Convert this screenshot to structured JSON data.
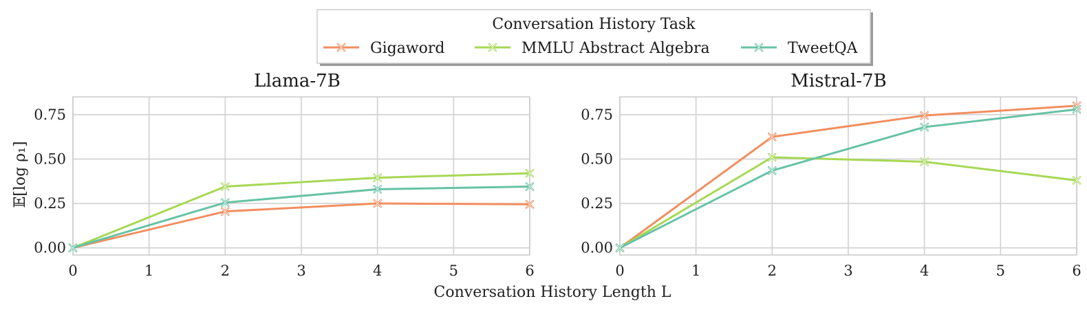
{
  "legend": {
    "title": "Conversation History Task",
    "entries": [
      {
        "name": "Gigaword",
        "color": "#f28e5f"
      },
      {
        "name": "MMLU Abstract Algebra",
        "color": "#a6d854"
      },
      {
        "name": "TweetQA",
        "color": "#66c2a5"
      }
    ]
  },
  "xlabel_shared": "Conversation History Length L",
  "chart_data": [
    {
      "type": "line",
      "title": "Llama-7B",
      "ylabel": "𝔼[log ρ₁]",
      "x": [
        0,
        2,
        4,
        6
      ],
      "xlim": [
        0,
        6
      ],
      "ylim": [
        -0.04,
        0.85
      ],
      "xticks": [
        0,
        1,
        2,
        3,
        4,
        5,
        6
      ],
      "yticks": [
        0.0,
        0.25,
        0.5,
        0.75
      ],
      "ytick_labels": [
        "0.00",
        "0.25",
        "0.50",
        "0.75"
      ],
      "grid": true,
      "marker": "x",
      "series": [
        {
          "name": "Gigaword",
          "color": "#f28e5f",
          "values": [
            0.0,
            0.205,
            0.25,
            0.245
          ]
        },
        {
          "name": "MMLU Abstract Algebra",
          "color": "#a6d854",
          "values": [
            0.0,
            0.345,
            0.395,
            0.42
          ]
        },
        {
          "name": "TweetQA",
          "color": "#66c2a5",
          "values": [
            0.0,
            0.255,
            0.33,
            0.345
          ]
        }
      ]
    },
    {
      "type": "line",
      "title": "Mistral-7B",
      "ylabel": "",
      "x": [
        0,
        2,
        4,
        6
      ],
      "xlim": [
        0,
        6
      ],
      "ylim": [
        -0.04,
        0.85
      ],
      "xticks": [
        0,
        1,
        2,
        3,
        4,
        5,
        6
      ],
      "yticks": [
        0.0,
        0.25,
        0.5,
        0.75
      ],
      "ytick_labels": [
        "0.00",
        "0.25",
        "0.50",
        "0.75"
      ],
      "grid": true,
      "marker": "x",
      "series": [
        {
          "name": "Gigaword",
          "color": "#f28e5f",
          "values": [
            0.0,
            0.625,
            0.745,
            0.8
          ]
        },
        {
          "name": "MMLU Abstract Algebra",
          "color": "#a6d854",
          "values": [
            0.0,
            0.51,
            0.485,
            0.38
          ]
        },
        {
          "name": "TweetQA",
          "color": "#66c2a5",
          "values": [
            0.0,
            0.435,
            0.68,
            0.78
          ]
        }
      ]
    }
  ]
}
